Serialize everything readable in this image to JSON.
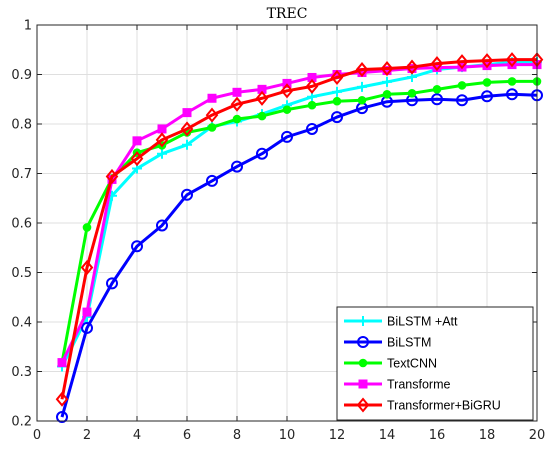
{
  "chart_data": {
    "type": "line",
    "title": "TREC",
    "xlabel": "",
    "ylabel": "",
    "xlim": [
      0,
      20
    ],
    "ylim": [
      0.2,
      1.0
    ],
    "xticks": [
      0,
      2,
      4,
      6,
      8,
      10,
      12,
      14,
      16,
      18,
      20
    ],
    "yticks": [
      0.2,
      0.3,
      0.4,
      0.5,
      0.6,
      0.7,
      0.8,
      0.9,
      1
    ],
    "grid": true,
    "legend_position": "bottom-right",
    "x": [
      1,
      2,
      3,
      4,
      5,
      6,
      7,
      8,
      9,
      10,
      11,
      12,
      13,
      14,
      15,
      16,
      17,
      18,
      19,
      20
    ],
    "series": [
      {
        "name": "BiLSTM +Att",
        "color": "#00ffff",
        "marker": "plus",
        "values": [
          0.31,
          0.41,
          0.655,
          0.71,
          0.74,
          0.758,
          0.795,
          0.805,
          0.82,
          0.838,
          0.855,
          0.865,
          0.875,
          0.885,
          0.895,
          0.91,
          0.915,
          0.92,
          0.925,
          0.925
        ]
      },
      {
        "name": "BiLSTM",
        "color": "#0000ff",
        "marker": "circle",
        "values": [
          0.208,
          0.388,
          0.478,
          0.553,
          0.595,
          0.657,
          0.685,
          0.714,
          0.74,
          0.774,
          0.79,
          0.814,
          0.832,
          0.845,
          0.848,
          0.85,
          0.848,
          0.856,
          0.86,
          0.858
        ]
      },
      {
        "name": "TextCNN",
        "color": "#00ff00",
        "marker": "dot",
        "values": [
          0.318,
          0.591,
          0.69,
          0.742,
          0.757,
          0.783,
          0.793,
          0.81,
          0.816,
          0.829,
          0.838,
          0.846,
          0.848,
          0.86,
          0.862,
          0.87,
          0.878,
          0.884,
          0.886,
          0.886
        ]
      },
      {
        "name": "Transforme",
        "color": "#ff00ff",
        "marker": "square",
        "values": [
          0.318,
          0.42,
          0.688,
          0.766,
          0.79,
          0.823,
          0.852,
          0.864,
          0.87,
          0.882,
          0.894,
          0.9,
          0.904,
          0.908,
          0.912,
          0.914,
          0.915,
          0.918,
          0.92,
          0.92
        ]
      },
      {
        "name": "Transformer+BiGRU",
        "color": "#ff0000",
        "marker": "diamond",
        "values": [
          0.244,
          0.51,
          0.694,
          0.73,
          0.768,
          0.79,
          0.818,
          0.84,
          0.852,
          0.867,
          0.876,
          0.894,
          0.91,
          0.912,
          0.915,
          0.922,
          0.926,
          0.928,
          0.93,
          0.93
        ]
      }
    ]
  }
}
